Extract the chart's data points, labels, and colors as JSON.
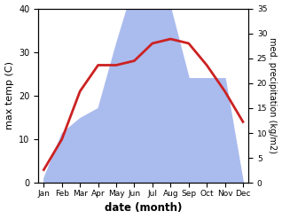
{
  "months": [
    "Jan",
    "Feb",
    "Mar",
    "Apr",
    "May",
    "Jun",
    "Jul",
    "Aug",
    "Sep",
    "Oct",
    "Nov",
    "Dec"
  ],
  "temp": [
    3,
    10,
    21,
    27,
    27,
    28,
    32,
    33,
    32,
    27,
    21,
    14
  ],
  "precip": [
    1,
    10,
    13,
    15,
    28,
    40,
    37,
    35,
    21,
    21,
    21,
    0
  ],
  "temp_color": "#cc2222",
  "precip_color": "#aabbee",
  "ylabel_left": "max temp (C)",
  "ylabel_right": "med. precipitation (kg/m2)",
  "xlabel": "date (month)",
  "ylim_left": [
    0,
    40
  ],
  "ylim_right": [
    0,
    35
  ],
  "yticks_left": [
    0,
    10,
    20,
    30,
    40
  ],
  "yticks_right": [
    0,
    5,
    10,
    15,
    20,
    25,
    30,
    35
  ],
  "bg_color": "#ffffff"
}
